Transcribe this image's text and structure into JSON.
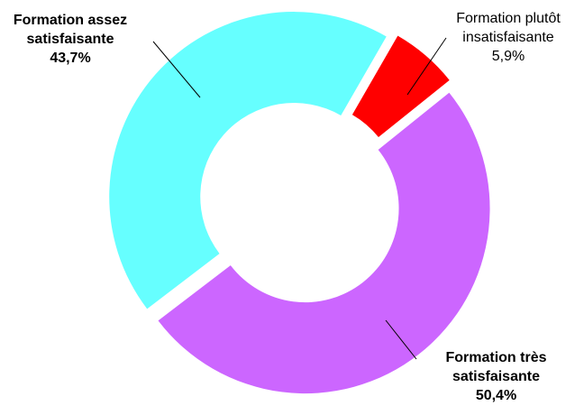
{
  "chart_data": {
    "type": "donut",
    "categories": [
      "Formation plutôt insatisfaisante",
      "Formation très satisfaisante",
      "Formation assez satisfaisante"
    ],
    "values": [
      5.9,
      50.4,
      43.7
    ],
    "value_labels": [
      "5,9%",
      "50,4%",
      "43,7%"
    ],
    "colors": [
      "#ff0000",
      "#cc66ff",
      "#66ffff"
    ]
  }
}
